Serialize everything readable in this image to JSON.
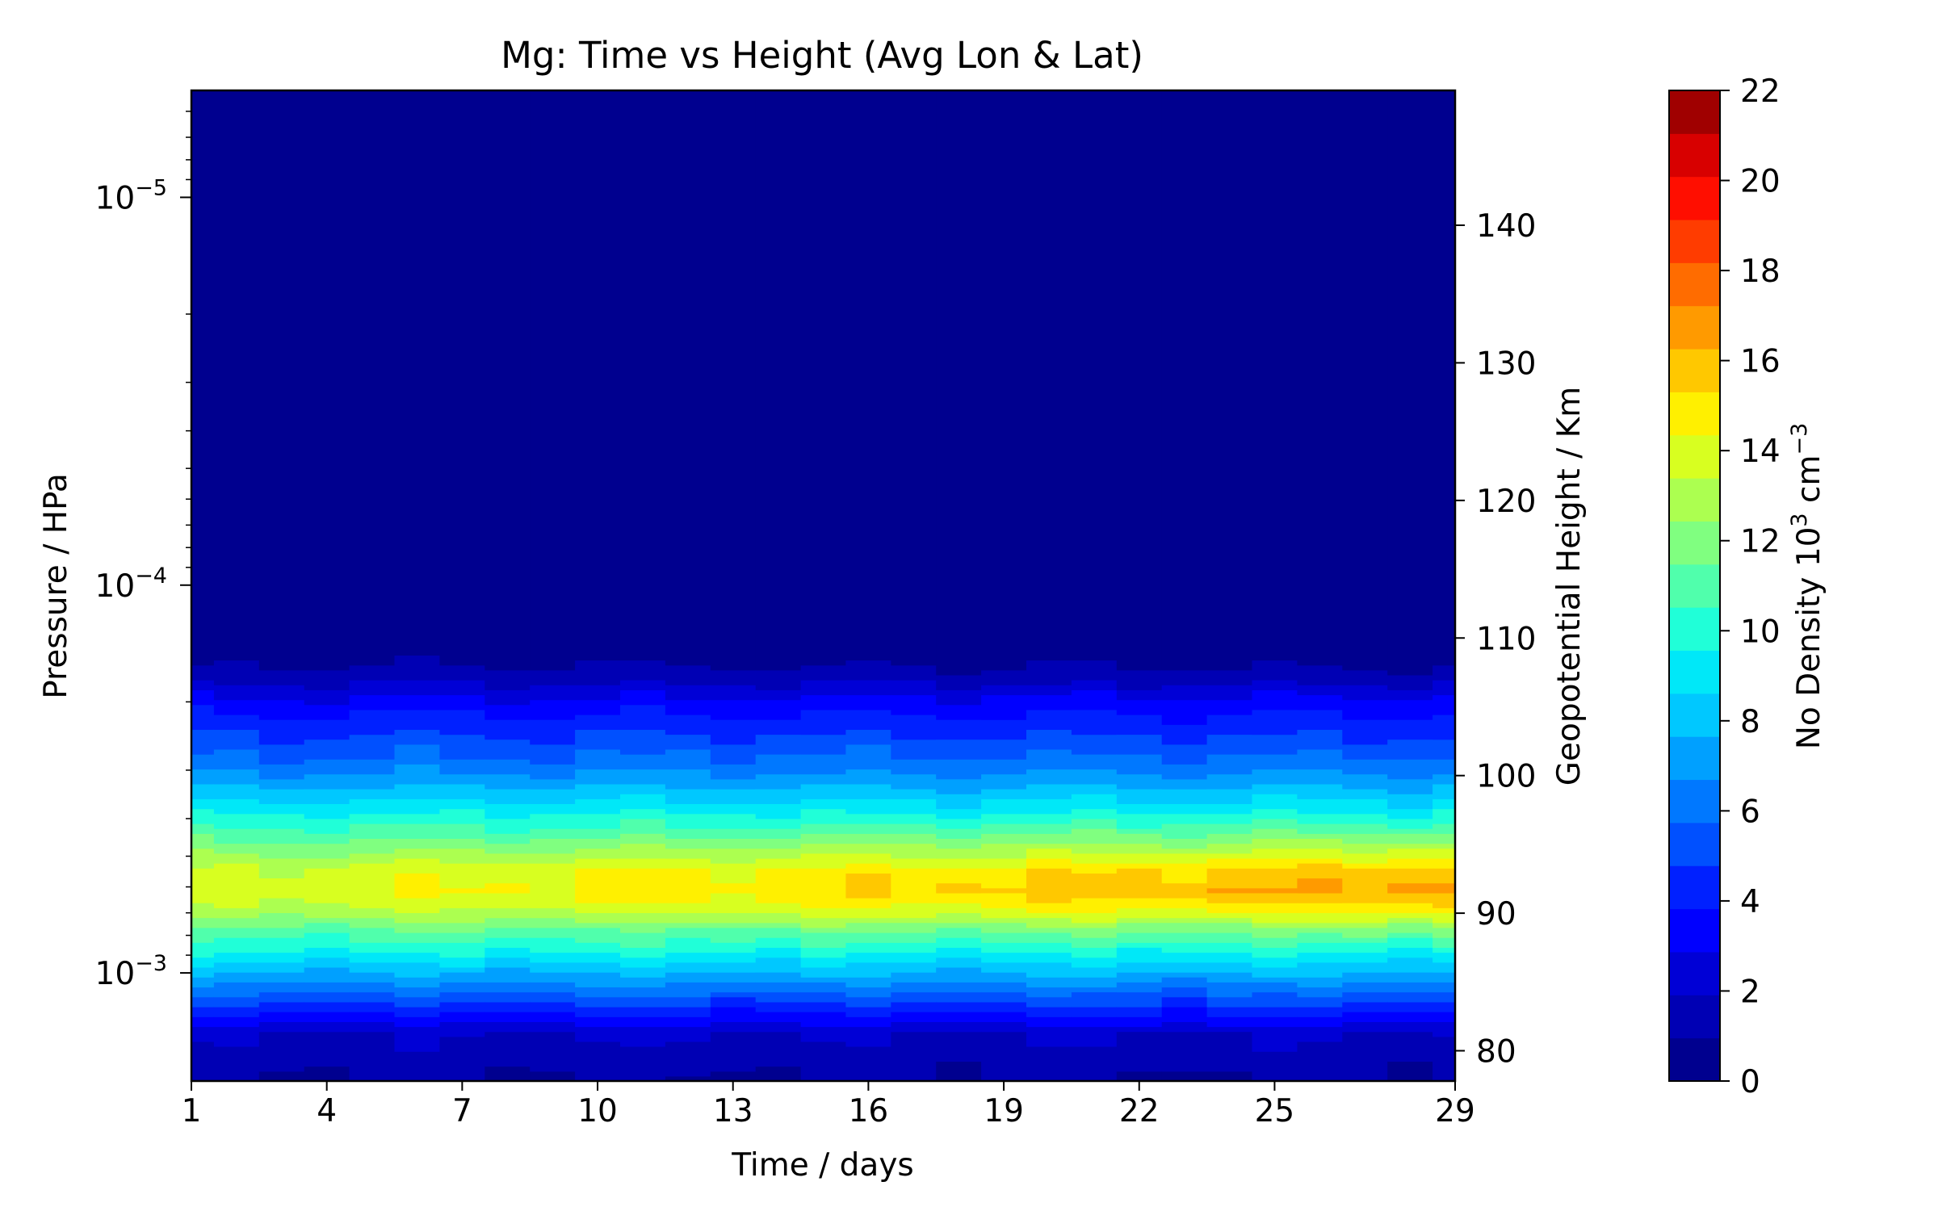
{
  "chart_data": {
    "type": "contourf",
    "title": "Mg: Time vs Height (Avg Lon & Lat)",
    "xlabel": "Time / days",
    "ylabel": "Pressure / HPa",
    "ylabel_right": "Geopotential Height / Km",
    "colorbar_label_base": "No Density 10",
    "colorbar_label_exp": "3",
    "colorbar_label_unit": " cm",
    "colorbar_label_unit_exp": "−3",
    "x_ticks": [
      "1",
      "4",
      "7",
      "10",
      "13",
      "16",
      "19",
      "22",
      "25",
      "29"
    ],
    "x_tick_values": [
      1,
      4,
      7,
      10,
      13,
      16,
      19,
      22,
      25,
      29
    ],
    "xlim": [
      1,
      29
    ],
    "yscale": "log",
    "ylim": [
      0.0019,
      5.3e-06
    ],
    "y_ticks": [
      {
        "base": "10",
        "exp": "−5",
        "value": 1e-05
      },
      {
        "base": "10",
        "exp": "−4",
        "value": 0.0001
      },
      {
        "base": "10",
        "exp": "−3",
        "value": 0.001
      }
    ],
    "y_right_ticks": [
      "80",
      "90",
      "100",
      "110",
      "120",
      "130",
      "140"
    ],
    "y_right_values": [
      80,
      90,
      100,
      110,
      120,
      130,
      140
    ],
    "y_right_lim": [
      77.8,
      149.8
    ],
    "colorbar_ticks": [
      "0",
      "2",
      "4",
      "6",
      "8",
      "10",
      "12",
      "14",
      "16",
      "18",
      "20",
      "22"
    ],
    "colorbar_levels": [
      0,
      1,
      2,
      3,
      4,
      5,
      6,
      7,
      8,
      9,
      10,
      11,
      12,
      13,
      14,
      15,
      16,
      17,
      18,
      19,
      20,
      21,
      22
    ],
    "colorbar_colors": [
      "#00008f",
      "#0000b4",
      "#0000d6",
      "#0000ff",
      "#0020ff",
      "#0050ff",
      "#0078ff",
      "#00a0ff",
      "#00c8ff",
      "#00e8f8",
      "#20ffd8",
      "#50ffac",
      "#80ff80",
      "#acff50",
      "#d8ff20",
      "#fff000",
      "#ffc800",
      "#ff9a00",
      "#ff6c00",
      "#ff3c00",
      "#ff0e00",
      "#d80000",
      "#a00000"
    ],
    "profile_heights_km": [
      77.8,
      81,
      82.5,
      84,
      85.5,
      87,
      88.5,
      90,
      91.5,
      93,
      94.5,
      96,
      97.5,
      99,
      100.5,
      102,
      103.5,
      105,
      106,
      107,
      108.5,
      149.8
    ],
    "profile_start": [
      1,
      2,
      4,
      6,
      8,
      10,
      11.5,
      13.5,
      14.5,
      14,
      12.5,
      11,
      9.5,
      8,
      6.5,
      5.5,
      4.5,
      3.5,
      2.5,
      1.5,
      0.5,
      0
    ],
    "profile_end": [
      1,
      2,
      4,
      6,
      8,
      10,
      12.5,
      15.5,
      17.5,
      16.5,
      14,
      11.5,
      9.5,
      8,
      6.5,
      5.5,
      4.5,
      3.5,
      2.5,
      1.5,
      0.5,
      0
    ],
    "time_days": [
      1,
      2,
      3,
      4,
      5,
      6,
      7,
      8,
      9,
      10,
      11,
      12,
      13,
      14,
      15,
      16,
      17,
      18,
      19,
      20,
      21,
      22,
      23,
      24,
      25,
      26,
      27,
      28,
      29
    ]
  }
}
